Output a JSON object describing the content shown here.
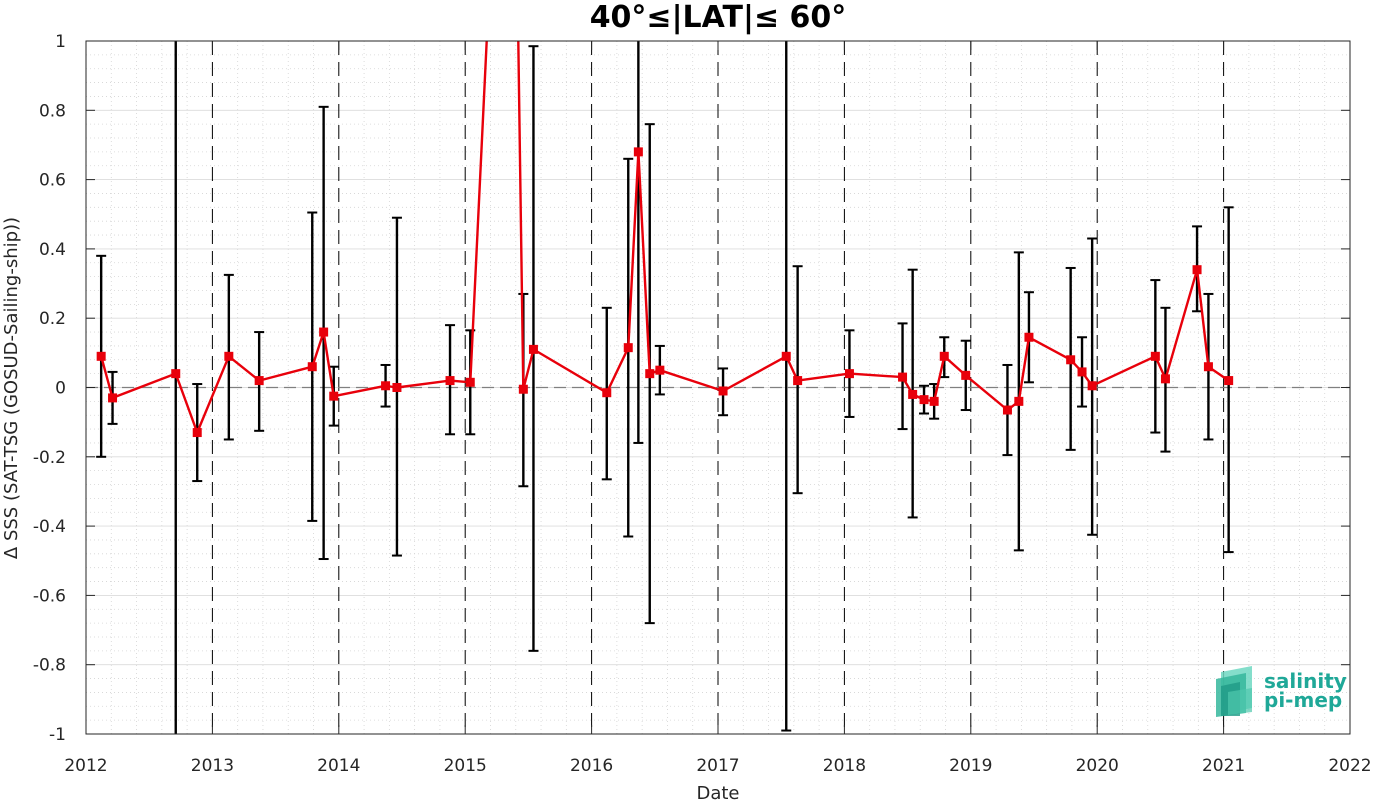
{
  "chart_data": {
    "type": "line",
    "title": "40°≤|LAT|≤ 60°",
    "xlabel": "Date",
    "ylabel": "Δ SSS (SAT-TSG (GOSUD-Sailing-ship))",
    "xlim": [
      2012,
      2022
    ],
    "ylim": [
      -1,
      1
    ],
    "x_ticks": [
      "2012",
      "2013",
      "2014",
      "2015",
      "2016",
      "2017",
      "2018",
      "2019",
      "2020",
      "2021",
      "2022"
    ],
    "y_ticks": [
      "1",
      "0.8",
      "0.6",
      "0.4",
      "0.2",
      "0",
      "-0.2",
      "-0.4",
      "-0.6",
      "-0.8",
      "-1"
    ],
    "grid": true,
    "minor_grid": true,
    "reference_line": 0,
    "year_separators": [
      2013,
      2014,
      2015,
      2016,
      2017,
      2018,
      2019,
      2020,
      2021
    ],
    "colors": {
      "line": "#e8000b",
      "marker": "#e8000b",
      "errorbar": "#000000",
      "zero_line": "#808080"
    },
    "series": [
      {
        "marker": "square",
        "x": [
          2012.12,
          2012.21,
          2012.71,
          2012.88,
          2013.13,
          2013.37,
          2013.79,
          2013.88,
          2013.96,
          2014.37,
          2014.46,
          2014.88,
          2015.04,
          2015.46,
          2015.54,
          2016.12,
          2016.29,
          2016.37,
          2016.46,
          2016.54,
          2017.04,
          2017.54,
          2017.63,
          2018.04,
          2018.46,
          2018.54,
          2018.63,
          2018.71,
          2018.79,
          2018.96,
          2019.29,
          2019.38,
          2019.46,
          2019.79,
          2019.88,
          2019.96,
          2020.46,
          2020.54,
          2020.79,
          2020.88,
          2021.04
        ],
        "y": [
          0.09,
          -0.03,
          0.04,
          -0.13,
          0.09,
          0.02,
          0.06,
          0.16,
          -0.025,
          0.005,
          0.0,
          0.02,
          0.015,
          -0.005,
          0.11,
          -0.015,
          0.115,
          0.68,
          0.04,
          0.05,
          -0.01,
          0.09,
          0.02,
          0.04,
          0.03,
          -0.02,
          -0.035,
          -0.04,
          0.09,
          0.035,
          -0.065,
          -0.04,
          0.145,
          0.08,
          0.045,
          0.005,
          0.09,
          0.025,
          0.34,
          0.06,
          0.02
        ],
        "error_lower": [
          -0.2,
          -0.105,
          -1.0,
          -0.27,
          -0.15,
          -0.125,
          -0.385,
          -0.495,
          -0.11,
          -0.055,
          -0.485,
          -0.135,
          -0.135,
          -0.285,
          -0.76,
          -0.265,
          -0.43,
          -0.16,
          -0.68,
          -0.02,
          -0.08,
          -0.99,
          -0.305,
          -0.085,
          -0.12,
          -0.375,
          -0.075,
          -0.09,
          0.03,
          -0.065,
          -0.195,
          -0.47,
          0.015,
          -0.18,
          -0.055,
          -0.425,
          -0.13,
          -0.185,
          0.22,
          -0.15,
          -0.475
        ],
        "error_upper": [
          0.38,
          0.045,
          1.0,
          0.01,
          0.325,
          0.16,
          0.505,
          0.81,
          0.06,
          0.065,
          0.49,
          0.18,
          0.165,
          0.27,
          0.985,
          0.23,
          0.66,
          1.0,
          0.76,
          0.12,
          0.055,
          1.0,
          0.35,
          0.165,
          0.185,
          0.34,
          0.005,
          0.01,
          0.145,
          0.135,
          0.065,
          0.39,
          0.275,
          0.345,
          0.145,
          0.43,
          0.31,
          0.23,
          0.465,
          0.27,
          0.52
        ]
      }
    ],
    "offscale_segment": {
      "from_x": 2015.04,
      "to_x": 2015.46,
      "peak_x_left": 2015.17,
      "peak_x_right": 2015.42
    }
  },
  "logo": {
    "line1": "salinity",
    "line2": "pi-mep",
    "text_color": "#1fa898",
    "icon_color": "#2fbf9f"
  }
}
